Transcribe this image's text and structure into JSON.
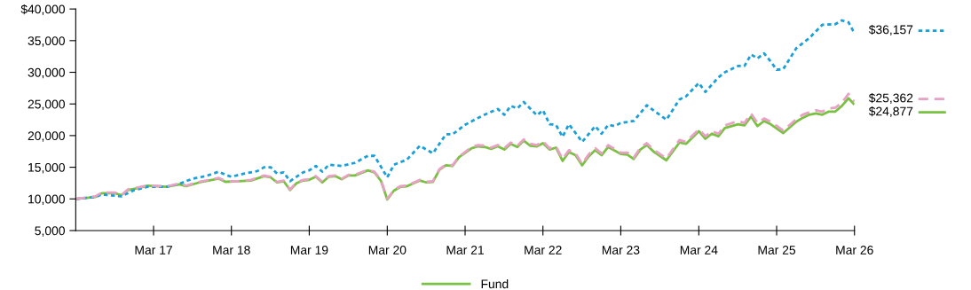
{
  "chart_data": {
    "type": "line",
    "xlim": [
      "2016-03",
      "2026-03"
    ],
    "xticks": [
      {
        "value": "2017-03",
        "label": "Mar 17"
      },
      {
        "value": "2018-03",
        "label": "Mar 18"
      },
      {
        "value": "2019-03",
        "label": "Mar 19"
      },
      {
        "value": "2020-03",
        "label": "Mar 20"
      },
      {
        "value": "2021-03",
        "label": "Mar 21"
      },
      {
        "value": "2022-03",
        "label": "Mar 22"
      },
      {
        "value": "2023-03",
        "label": "Mar 23"
      },
      {
        "value": "2024-03",
        "label": "Mar 24"
      },
      {
        "value": "2025-03",
        "label": "Mar 25"
      },
      {
        "value": "2026-03",
        "label": "Mar 26"
      }
    ],
    "ylim": [
      5000,
      40000
    ],
    "yticks": [
      {
        "value": 5000,
        "label": "5,000"
      },
      {
        "value": 10000,
        "label": "10,000"
      },
      {
        "value": 15000,
        "label": "15,000"
      },
      {
        "value": 20000,
        "label": "20,000"
      },
      {
        "value": 25000,
        "label": "25,000"
      },
      {
        "value": 30000,
        "label": "30,000"
      },
      {
        "value": 35000,
        "label": "35,000"
      },
      {
        "value": 40000,
        "label": "$40,000"
      }
    ],
    "legend": "bottom",
    "series": [
      {
        "name": "Fund",
        "color": "#7ac143",
        "line_style": "solid",
        "x": [
          "2016-03",
          "2016-06",
          "2016-07",
          "2016-09",
          "2016-10",
          "2016-11",
          "2017-01",
          "2017-02",
          "2017-05",
          "2017-07",
          "2017-08",
          "2017-10",
          "2018-01",
          "2018-02",
          "2018-04",
          "2018-06",
          "2018-08",
          "2018-09",
          "2018-10",
          "2018-11",
          "2018-12",
          "2019-01",
          "2019-02",
          "2019-03",
          "2019-04",
          "2019-05",
          "2019-06",
          "2019-07",
          "2019-08",
          "2019-09",
          "2019-10",
          "2019-12",
          "2020-01",
          "2020-02",
          "2020-03",
          "2020-04",
          "2020-05",
          "2020-06",
          "2020-08",
          "2020-09",
          "2020-10",
          "2020-11",
          "2020-12",
          "2021-01",
          "2021-02",
          "2021-04",
          "2021-05",
          "2021-06",
          "2021-07",
          "2021-08",
          "2021-09",
          "2021-10",
          "2021-11",
          "2021-12",
          "2022-01",
          "2022-02",
          "2022-03",
          "2022-04",
          "2022-05",
          "2022-06",
          "2022-07",
          "2022-08",
          "2022-09",
          "2022-10",
          "2022-11",
          "2022-12",
          "2023-01",
          "2023-03",
          "2023-04",
          "2023-05",
          "2023-06",
          "2023-07",
          "2023-08",
          "2023-10",
          "2023-12",
          "2024-01",
          "2024-03",
          "2024-04",
          "2024-05",
          "2024-06",
          "2024-07",
          "2024-09",
          "2024-10",
          "2024-11",
          "2024-12",
          "2025-01",
          "2025-02",
          "2025-04",
          "2025-06",
          "2025-07",
          "2025-08",
          "2025-09",
          "2025-10",
          "2025-11",
          "2025-12",
          "2026-01",
          "2026-02",
          "2026-03"
        ],
        "values": [
          10000,
          10300,
          10900,
          10900,
          10600,
          11400,
          11800,
          12100,
          11900,
          12300,
          12000,
          12600,
          13200,
          12700,
          12800,
          12900,
          13600,
          13400,
          12600,
          12800,
          11400,
          12500,
          12900,
          13000,
          13500,
          12600,
          13500,
          13600,
          13100,
          13700,
          13700,
          14500,
          14200,
          12800,
          9900,
          11300,
          11900,
          12000,
          12900,
          12600,
          12700,
          14600,
          15300,
          15200,
          16600,
          18000,
          18300,
          18200,
          17900,
          18300,
          17800,
          18700,
          18200,
          19200,
          18400,
          18300,
          18800,
          17800,
          18100,
          16000,
          17400,
          16900,
          15300,
          16700,
          17700,
          16900,
          18200,
          17100,
          17000,
          16300,
          17800,
          18500,
          17500,
          16100,
          18900,
          18700,
          20700,
          19500,
          20300,
          19900,
          21200,
          21800,
          21600,
          23000,
          21500,
          22300,
          21800,
          20400,
          22200,
          22800,
          23300,
          23500,
          23300,
          23800,
          23800,
          24700,
          25900,
          24877
        ]
      },
      {
        "color": "#1a9fd9",
        "line_style": "dotted",
        "x": [
          "2016-03",
          "2016-06",
          "2016-07",
          "2016-10",
          "2016-12",
          "2017-02",
          "2017-05",
          "2017-07",
          "2017-09",
          "2017-11",
          "2018-01",
          "2018-02",
          "2018-03",
          "2018-05",
          "2018-07",
          "2018-08",
          "2018-09",
          "2018-10",
          "2018-11",
          "2018-12",
          "2019-02",
          "2019-03",
          "2019-04",
          "2019-05",
          "2019-06",
          "2019-08",
          "2019-10",
          "2019-12",
          "2020-01",
          "2020-03",
          "2020-04",
          "2020-06",
          "2020-08",
          "2020-10",
          "2020-12",
          "2021-01",
          "2021-03",
          "2021-05",
          "2021-06",
          "2021-08",
          "2021-09",
          "2021-10",
          "2021-11",
          "2021-12",
          "2022-02",
          "2022-03",
          "2022-04",
          "2022-05",
          "2022-06",
          "2022-07",
          "2022-09",
          "2022-11",
          "2022-12",
          "2023-01",
          "2023-02",
          "2023-03",
          "2023-05",
          "2023-07",
          "2023-08",
          "2023-10",
          "2023-12",
          "2024-01",
          "2024-03",
          "2024-04",
          "2024-06",
          "2024-07",
          "2024-09",
          "2024-10",
          "2024-11",
          "2024-12",
          "2025-01",
          "2025-02",
          "2025-03",
          "2025-04",
          "2025-06",
          "2025-08",
          "2025-10",
          "2025-12",
          "2026-01",
          "2026-02",
          "2026-03"
        ],
        "values": [
          10000,
          10300,
          10700,
          10400,
          11400,
          11900,
          11900,
          12400,
          13200,
          13600,
          14300,
          13800,
          13500,
          14000,
          14400,
          15000,
          15000,
          14000,
          14200,
          12800,
          14200,
          14500,
          15200,
          14300,
          15400,
          15200,
          15700,
          16800,
          16800,
          13400,
          15400,
          16200,
          18400,
          17200,
          20200,
          20200,
          21700,
          22800,
          23300,
          24200,
          23300,
          24700,
          24300,
          25300,
          23200,
          24000,
          21800,
          21700,
          19800,
          21800,
          19000,
          21500,
          20300,
          21700,
          21500,
          22000,
          22300,
          24800,
          24000,
          22500,
          25700,
          26200,
          28300,
          26900,
          29200,
          30000,
          31000,
          31000,
          32800,
          32200,
          33000,
          31700,
          30400,
          30500,
          33800,
          35400,
          37500,
          37600,
          38200,
          37900,
          36157
        ]
      },
      {
        "color": "#e8a0c4",
        "line_style": "dashed",
        "x": [
          "2016-03",
          "2016-06",
          "2016-07",
          "2016-09",
          "2016-10",
          "2016-11",
          "2017-01",
          "2017-02",
          "2017-05",
          "2017-07",
          "2017-08",
          "2017-10",
          "2018-01",
          "2018-02",
          "2018-04",
          "2018-06",
          "2018-08",
          "2018-09",
          "2018-10",
          "2018-11",
          "2018-12",
          "2019-01",
          "2019-02",
          "2019-03",
          "2019-04",
          "2019-05",
          "2019-06",
          "2019-07",
          "2019-08",
          "2019-09",
          "2019-10",
          "2019-12",
          "2020-01",
          "2020-02",
          "2020-03",
          "2020-04",
          "2020-05",
          "2020-06",
          "2020-08",
          "2020-09",
          "2020-10",
          "2020-11",
          "2020-12",
          "2021-01",
          "2021-02",
          "2021-04",
          "2021-05",
          "2021-06",
          "2021-07",
          "2021-08",
          "2021-09",
          "2021-10",
          "2021-11",
          "2021-12",
          "2022-01",
          "2022-02",
          "2022-03",
          "2022-04",
          "2022-05",
          "2022-06",
          "2022-07",
          "2022-08",
          "2022-09",
          "2022-10",
          "2022-11",
          "2022-12",
          "2023-01",
          "2023-03",
          "2023-04",
          "2023-05",
          "2023-06",
          "2023-07",
          "2023-08",
          "2023-10",
          "2023-12",
          "2024-01",
          "2024-03",
          "2024-04",
          "2024-05",
          "2024-06",
          "2024-07",
          "2024-09",
          "2024-10",
          "2024-11",
          "2024-12",
          "2025-01",
          "2025-02",
          "2025-04",
          "2025-06",
          "2025-07",
          "2025-08",
          "2025-09",
          "2025-10",
          "2025-11",
          "2025-12",
          "2026-01",
          "2026-02",
          "2026-03"
        ],
        "values": [
          10000,
          10400,
          11000,
          11000,
          10600,
          11500,
          11900,
          12100,
          12000,
          12400,
          12100,
          12700,
          13300,
          12800,
          12800,
          13000,
          13700,
          13500,
          12700,
          12900,
          11500,
          12600,
          13000,
          13100,
          13600,
          12700,
          13600,
          13700,
          13200,
          13800,
          13800,
          14600,
          14300,
          12900,
          10000,
          11400,
          12000,
          12100,
          13000,
          12700,
          12800,
          14700,
          15400,
          15300,
          16700,
          18200,
          18500,
          18400,
          18100,
          18500,
          18000,
          18900,
          18400,
          19400,
          18700,
          18500,
          19100,
          18000,
          18300,
          16300,
          17700,
          17200,
          15500,
          17000,
          18000,
          17200,
          18500,
          17300,
          17300,
          16500,
          18100,
          18800,
          17800,
          16400,
          19300,
          19000,
          21000,
          19900,
          20700,
          20300,
          21600,
          22300,
          22000,
          23500,
          22000,
          22700,
          22200,
          20800,
          22600,
          23300,
          23700,
          24000,
          23800,
          24300,
          24400,
          25200,
          26600,
          25362
        ]
      }
    ],
    "annotations": [
      {
        "text": "$36,157",
        "x": "2026-03",
        "y": 36157
      },
      {
        "text": "$25,362",
        "x": "2026-03",
        "y": 25362
      },
      {
        "text": "$24,877",
        "x": "2026-03",
        "y": 24877
      }
    ]
  }
}
